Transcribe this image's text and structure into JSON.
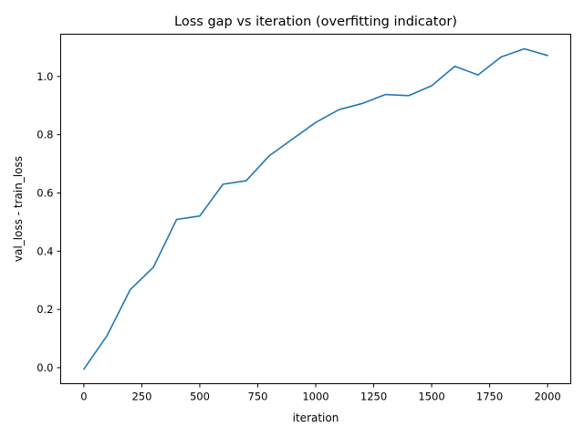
{
  "chart_data": {
    "type": "line",
    "title": "Loss gap vs iteration (overfitting indicator)",
    "xlabel": "iteration",
    "ylabel": "val_loss - train_loss",
    "xlim": [
      -100,
      2100
    ],
    "ylim": [
      -0.055,
      1.145
    ],
    "x_ticks": [
      0,
      250,
      500,
      750,
      1000,
      1250,
      1500,
      1750,
      2000
    ],
    "y_ticks": [
      0.0,
      0.2,
      0.4,
      0.6,
      0.8,
      1.0
    ],
    "x_tick_labels": [
      "0",
      "250",
      "500",
      "750",
      "1000",
      "1250",
      "1500",
      "1750",
      "2000"
    ],
    "y_tick_labels": [
      "0.0",
      "0.2",
      "0.4",
      "0.6",
      "0.8",
      "1.0"
    ],
    "grid": false,
    "series": [
      {
        "color": "#1f77b4",
        "x": [
          0,
          100,
          200,
          300,
          400,
          500,
          600,
          700,
          800,
          900,
          1000,
          1100,
          1200,
          1300,
          1400,
          1500,
          1600,
          1700,
          1800,
          1900,
          2000
        ],
        "y": [
          -0.005,
          0.11,
          0.268,
          0.345,
          0.509,
          0.521,
          0.63,
          0.642,
          0.728,
          0.785,
          0.842,
          0.886,
          0.907,
          0.938,
          0.934,
          0.968,
          1.035,
          1.005,
          1.067,
          1.095,
          1.072
        ]
      }
    ]
  }
}
